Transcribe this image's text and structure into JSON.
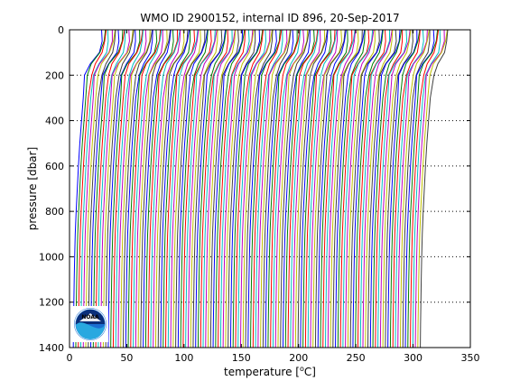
{
  "chart_data": {
    "type": "line",
    "title": "WMO ID 2900152, internal ID 896, 20-Sep-2017",
    "xlabel": "temperature [°C]",
    "ylabel": "pressure [dbar]",
    "xlim": [
      0,
      350
    ],
    "ylim": [
      0,
      1400
    ],
    "y_reversed": true,
    "xticks": [
      0,
      50,
      100,
      150,
      200,
      250,
      300,
      350
    ],
    "yticks": [
      0,
      200,
      400,
      600,
      800,
      1000,
      1200,
      1400
    ],
    "grid": "horizontal dotted lines at y ticks",
    "logo": "NOAA",
    "series_colors": [
      "#0000ff",
      "#008000",
      "#ff0000",
      "#00bfbf",
      "#bf00bf",
      "#bfbf00",
      "#404040"
    ],
    "profile_template": {
      "note": "each profile is the same shape offset by a constant in x (plotting convention: successive profiles shifted)",
      "pressure": [
        0,
        50,
        100,
        150,
        200,
        300,
        400,
        500,
        600,
        700,
        800,
        900,
        1000,
        1100,
        1200,
        1300,
        1400
      ],
      "temperature": [
        28,
        27.5,
        25,
        18,
        14,
        12,
        10.5,
        9,
        7.8,
        6.8,
        5.8,
        5,
        4.5,
        4.1,
        3.8,
        3.5,
        3.3
      ]
    },
    "profile_offsets": {
      "start": 0,
      "step": 2.18,
      "count": 140
    }
  }
}
